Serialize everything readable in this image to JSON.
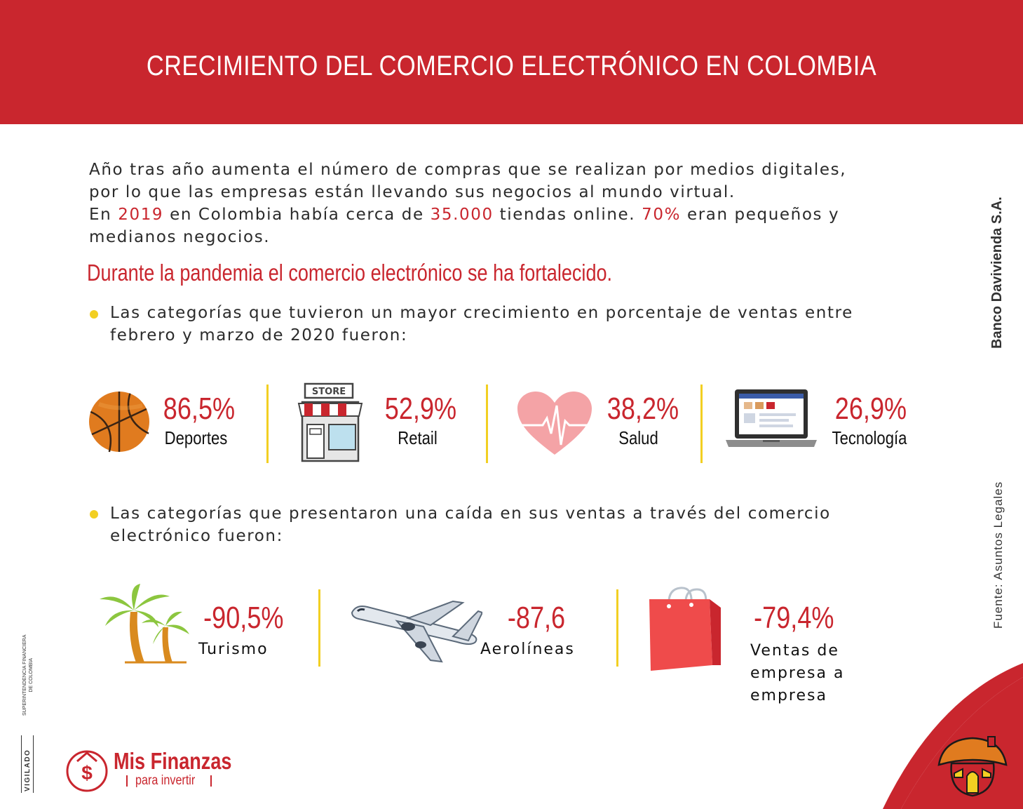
{
  "header": {
    "title": "CRECIMIENTO DEL COMERCIO ELECTRÓNICO EN COLOMBIA"
  },
  "intro": {
    "line1": "Año tras año aumenta el número de compras que se realizan por medios digitales,",
    "line2": "por lo que las empresas están llevando sus negocios al mundo virtual.",
    "line3_a": "En ",
    "year": "2019",
    "line3_b": " en Colombia había cerca de ",
    "stores": "35.000",
    "line3_c": " tiendas online. ",
    "share": "70%",
    "line3_d": " eran pequeños y",
    "line4": "medianos negocios."
  },
  "subtitle": "Durante la pandemia el comercio electrónico se ha fortalecido.",
  "growth": {
    "intro_line1": "Las categorías que tuvieron un mayor crecimiento en porcentaje de ventas entre",
    "intro_line2": "febrero y marzo de 2020 fueron:",
    "items": [
      {
        "value": "86,5%",
        "label": "Deportes",
        "icon": "basketball-icon"
      },
      {
        "value": "52,9%",
        "label": "Retail",
        "icon": "store-icon",
        "icon_text": "STORE"
      },
      {
        "value": "38,2%",
        "label": "Salud",
        "icon": "heart-icon"
      },
      {
        "value": "26,9%",
        "label": "Tecnología",
        "icon": "laptop-icon"
      }
    ]
  },
  "decline": {
    "intro_line1": "Las categorías que presentaron una caída en sus ventas a través del comercio",
    "intro_line2": "electrónico fueron:",
    "items": [
      {
        "value": "-90,5%",
        "label": "Turismo",
        "icon": "palm-trees-icon"
      },
      {
        "value": "-87,6",
        "label": "Aerolíneas",
        "icon": "airplane-icon"
      },
      {
        "value": "-79,4%",
        "label_line1": "Ventas de",
        "label_line2": "empresa a",
        "label_line3": "empresa",
        "icon": "shopping-bag-icon"
      }
    ]
  },
  "side": {
    "bank": "Banco Davivienda S.A.",
    "source": "Fuente: Asuntos Legales",
    "supervisor_line1": "SUPERINTENDENCIA FINANCIERA",
    "supervisor_line2": "DE COLOMBIA",
    "vigilado": "VIGILADO"
  },
  "brand": {
    "name": "Mis Finanzas",
    "tagline": "para invertir",
    "symbol": "$"
  },
  "colors": {
    "red": "#c9262e",
    "yellow": "#f2cf22",
    "pink": "#f4a3a6"
  }
}
